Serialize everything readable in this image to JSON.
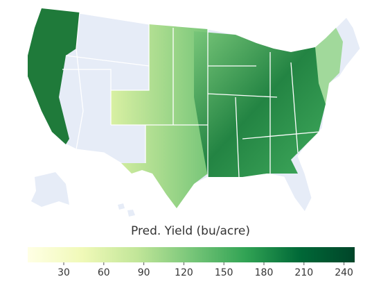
{
  "map": {
    "colorbar": {
      "title": "Pred. Yield (bu/acre)",
      "range": [
        3,
        248
      ],
      "ticks": [
        30,
        60,
        90,
        120,
        150,
        180,
        210,
        240
      ],
      "colors": [
        "#ffffe5",
        "#f0f9b8",
        "#c2e699",
        "#78c679",
        "#31a354",
        "#006837",
        "#004529"
      ]
    }
  }
}
